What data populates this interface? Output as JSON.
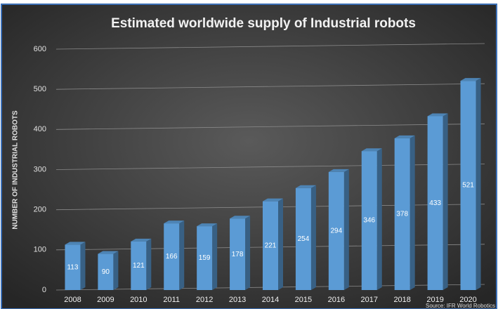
{
  "chart_data": {
    "type": "bar",
    "title": "Estimated worldwide supply of Industrial robots",
    "y_label": "NUMBER OF INDUSTRIAL ROBOTS",
    "source": "Source: IFR World Robotics",
    "categories": [
      "2008",
      "2009",
      "2010",
      "2011",
      "2012",
      "2013",
      "2014",
      "2015",
      "2016",
      "2017",
      "2018",
      "2019",
      "2020"
    ],
    "values": [
      113,
      90,
      121,
      166,
      159,
      178,
      221,
      254,
      294,
      346,
      378,
      433,
      521
    ],
    "color": "#5b9bd5",
    "ylim": [
      0,
      600
    ],
    "yticks": [
      0,
      100,
      200,
      300,
      400,
      500,
      600
    ],
    "grid": true
  }
}
